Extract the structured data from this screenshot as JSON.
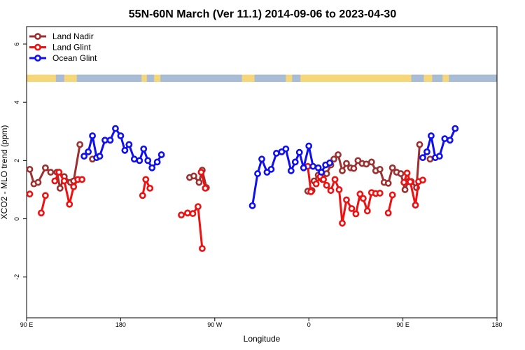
{
  "chart_data": {
    "type": "line",
    "title": "55N-60N March (Ver 11.1)   2014-09-06 to 2023-04-30",
    "xlabel": "Longitude",
    "ylabel": "XCO2 - MLO trend (ppm)",
    "x_ticks": [
      {
        "value": 90,
        "label": "90 E"
      },
      {
        "value": 180,
        "label": "180"
      },
      {
        "value": 270,
        "label": "90 W"
      },
      {
        "value": 360,
        "label": "0"
      },
      {
        "value": 450,
        "label": "90 E"
      },
      {
        "value": 540,
        "label": "180"
      }
    ],
    "y_ticks": [
      -2,
      0,
      2,
      4,
      6
    ],
    "xlim": [
      90,
      540
    ],
    "ylim": [
      -3.4,
      6.6
    ],
    "grid": false,
    "legend_position": "top-left",
    "map_strip": {
      "y_bottom": 4.7,
      "y_top": 4.95,
      "land_color": "#f5d77a",
      "ocean_color": "#a9bcd6"
    },
    "series": [
      {
        "name": "Land Nadir",
        "color": "#9c3030",
        "segments": [
          [
            [
              93,
              1.7
            ],
            [
              97,
              1.2
            ],
            [
              101,
              1.25
            ],
            [
              108,
              1.75
            ],
            [
              113,
              1.6
            ],
            [
              119,
              1.6
            ],
            [
              122,
              1.05
            ],
            [
              126,
              1.45
            ],
            [
              132,
              1.25
            ],
            [
              135,
              1.3
            ],
            [
              141,
              2.55
            ]
          ],
          [
            [
              153,
              2.05
            ]
          ],
          [
            [
              246,
              1.42
            ],
            [
              250,
              1.47
            ],
            [
              255,
              1.25
            ],
            [
              258,
              1.67
            ],
            [
              262,
              1.07
            ]
          ],
          [
            [
              359,
              0.95
            ],
            [
              363,
              0.97
            ]
          ],
          [
            [
              365,
              1.3
            ],
            [
              369,
              1.5
            ],
            [
              373,
              1.35
            ],
            [
              377,
              1.55
            ],
            [
              381,
              1.85
            ],
            [
              384,
              2.05
            ],
            [
              388,
              2.2
            ],
            [
              392,
              1.65
            ],
            [
              396,
              1.9
            ],
            [
              400,
              1.75
            ],
            [
              403,
              1.73
            ],
            [
              407,
              2.0
            ],
            [
              411,
              1.9
            ],
            [
              415,
              1.88
            ],
            [
              420,
              1.95
            ],
            [
              424,
              1.65
            ],
            [
              428,
              1.7
            ],
            [
              432,
              1.25
            ],
            [
              436,
              1.22
            ],
            [
              440,
              1.75
            ],
            [
              444,
              1.6
            ],
            [
              448,
              1.55
            ],
            [
              452,
              1.0
            ],
            [
              455,
              1.28
            ],
            [
              458,
              1.28
            ],
            [
              463,
              1.07
            ],
            [
              466,
              2.55
            ]
          ],
          [
            [
              476,
              2.05
            ]
          ]
        ]
      },
      {
        "name": "Land Glint",
        "color": "#ee1111",
        "segments": [
          [
            [
              93,
              0.85
            ]
          ],
          [
            [
              104,
              0.2
            ],
            [
              108,
              0.8
            ]
          ],
          [
            [
              117,
              1.3
            ],
            [
              121,
              1.6
            ],
            [
              126,
              1.3
            ],
            [
              131,
              0.5
            ],
            [
              135,
              1.1
            ],
            [
              139,
              1.35
            ],
            [
              143,
              1.35
            ]
          ],
          [
            [
              201,
              0.8
            ],
            [
              204,
              1.35
            ],
            [
              208,
              1.05
            ]
          ],
          [
            [
              257,
              1.6
            ],
            [
              261,
              1.05
            ]
          ],
          [
            [
              238,
              0.13
            ],
            [
              244,
              0.2
            ],
            [
              249,
              0.18
            ],
            [
              254,
              0.42
            ],
            [
              258,
              -1.02
            ]
          ],
          [
            [
              359,
              1.8
            ],
            [
              362,
              0.93
            ]
          ],
          [
            [
              367,
              1.2
            ],
            [
              371,
              1.45
            ],
            [
              374,
              1.35
            ],
            [
              377,
              1.15
            ],
            [
              381,
              0.97
            ],
            [
              385,
              1.35
            ],
            [
              389,
              1.0
            ],
            [
              392,
              -0.15
            ],
            [
              396,
              0.65
            ],
            [
              401,
              0.35
            ],
            [
              405,
              0.17
            ],
            [
              409,
              0.85
            ],
            [
              412,
              0.7
            ],
            [
              416,
              0.27
            ],
            [
              420,
              0.9
            ],
            [
              424,
              0.87
            ],
            [
              428,
              0.88
            ]
          ],
          [
            [
              436,
              0.2
            ],
            [
              440,
              0.82
            ]
          ],
          [
            [
              451,
              1.25
            ],
            [
              454,
              1.57
            ],
            [
              457,
              1.27
            ],
            [
              462,
              0.47
            ],
            [
              465,
              1.28
            ],
            [
              469,
              1.33
            ]
          ]
        ]
      },
      {
        "name": "Ocean Glint",
        "color": "#1010ee",
        "segments": [
          [
            [
              145,
              2.15
            ],
            [
              149,
              2.3
            ],
            [
              153,
              2.85
            ],
            [
              157,
              2.1
            ],
            [
              160,
              2.15
            ],
            [
              165,
              2.7
            ],
            [
              170,
              2.7
            ],
            [
              175,
              3.1
            ],
            [
              180,
              2.85
            ],
            [
              184,
              2.35
            ],
            [
              188,
              2.55
            ],
            [
              193,
              2.05
            ],
            [
              198,
              2.0
            ],
            [
              202,
              2.4
            ],
            [
              206,
              2.0
            ],
            [
              210,
              1.75
            ],
            [
              215,
              1.95
            ],
            [
              219,
              2.2
            ]
          ],
          [
            [
              306,
              0.45
            ],
            [
              311,
              1.55
            ],
            [
              315,
              2.05
            ],
            [
              320,
              1.6
            ],
            [
              324,
              1.7
            ],
            [
              329,
              2.25
            ],
            [
              334,
              2.3
            ],
            [
              338,
              2.4
            ],
            [
              343,
              1.65
            ],
            [
              347,
              1.95
            ],
            [
              351,
              2.28
            ],
            [
              355,
              1.75
            ],
            [
              360,
              2.5
            ],
            [
              364,
              1.8
            ],
            [
              369,
              1.75
            ],
            [
              372,
              1.6
            ],
            [
              376,
              1.85
            ],
            [
              380,
              1.92
            ]
          ],
          [
            [
              469,
              2.1
            ],
            [
              473,
              2.3
            ],
            [
              477,
              2.85
            ],
            [
              481,
              2.1
            ],
            [
              485,
              2.15
            ],
            [
              490,
              2.75
            ],
            [
              495,
              2.7
            ],
            [
              500,
              3.1
            ]
          ]
        ]
      }
    ]
  }
}
